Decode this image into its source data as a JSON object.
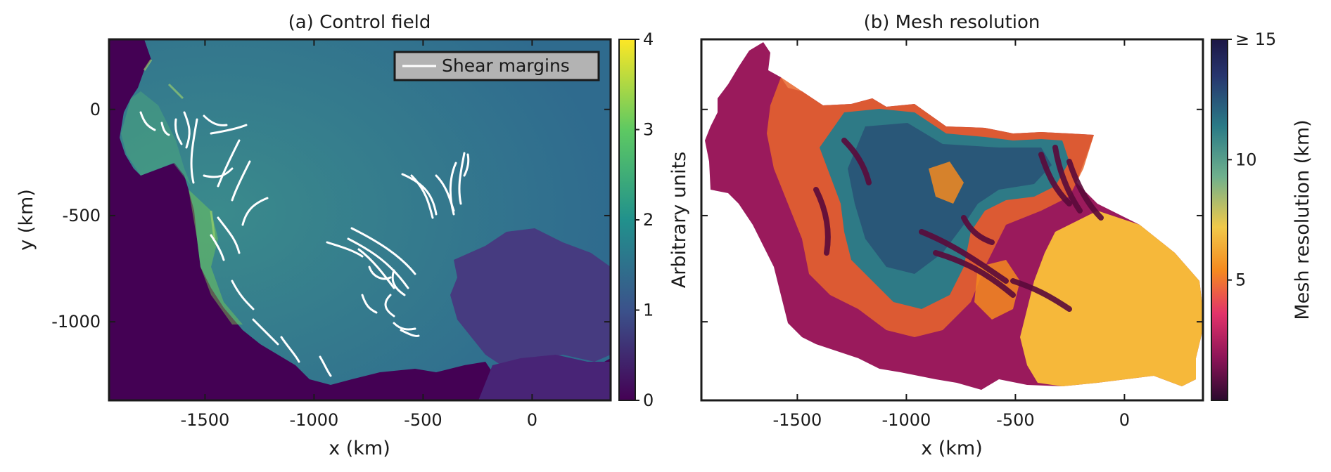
{
  "chart_data": [
    {
      "type": "heatmap",
      "title": "(a) Control field",
      "xlabel": "x (km)",
      "ylabel": "y (km)",
      "xlim": [
        -1940,
        360
      ],
      "ylim": [
        -1370,
        330
      ],
      "xticks": [
        -1500,
        -1000,
        -500,
        0
      ],
      "xtick_labels": [
        "-1500",
        "-1000",
        "-500",
        "0"
      ],
      "yticks": [
        0,
        -500,
        -1000
      ],
      "ytick_labels": [
        "0",
        "-500",
        "-1000"
      ],
      "colorbar": {
        "label": "Arbitrary units",
        "colormap": "viridis",
        "range": [
          0,
          4
        ],
        "ticks": [
          0,
          1,
          2,
          3,
          4
        ],
        "tick_labels": [
          "0",
          "1",
          "2",
          "3",
          "4"
        ],
        "colors": [
          "#440154",
          "#3b528b",
          "#21918c",
          "#5ec962",
          "#fde725"
        ]
      },
      "legend": {
        "placement": "top-right",
        "entries": [
          "Shear margins"
        ]
      },
      "background_color": "#440154",
      "ice_color": "#2f6b8e",
      "margin_color": "#ffffff",
      "grid": false
    },
    {
      "type": "heatmap",
      "title": "(b) Mesh resolution",
      "xlabel": "x (km)",
      "ylabel": "",
      "xlim": [
        -1940,
        360
      ],
      "ylim": [
        -1370,
        330
      ],
      "xticks": [
        -1500,
        -1000,
        -500,
        0
      ],
      "xtick_labels": [
        "-1500",
        "-1000",
        "-500",
        "0"
      ],
      "colorbar": {
        "label": "Mesh resolution (km)",
        "colormap": "inferno",
        "range": [
          0,
          15
        ],
        "ticks": [
          5,
          10,
          15
        ],
        "tick_labels": [
          "5",
          "10",
          "≥ 15"
        ],
        "colors": [
          "#2a0a2e",
          "#8e1458",
          "#e2336a",
          "#f58a1f",
          "#f0c94a",
          "#6fb08d",
          "#2a7a86",
          "#27356e",
          "#1d1745"
        ]
      },
      "background_color": "#ffffff",
      "grid": false
    }
  ]
}
